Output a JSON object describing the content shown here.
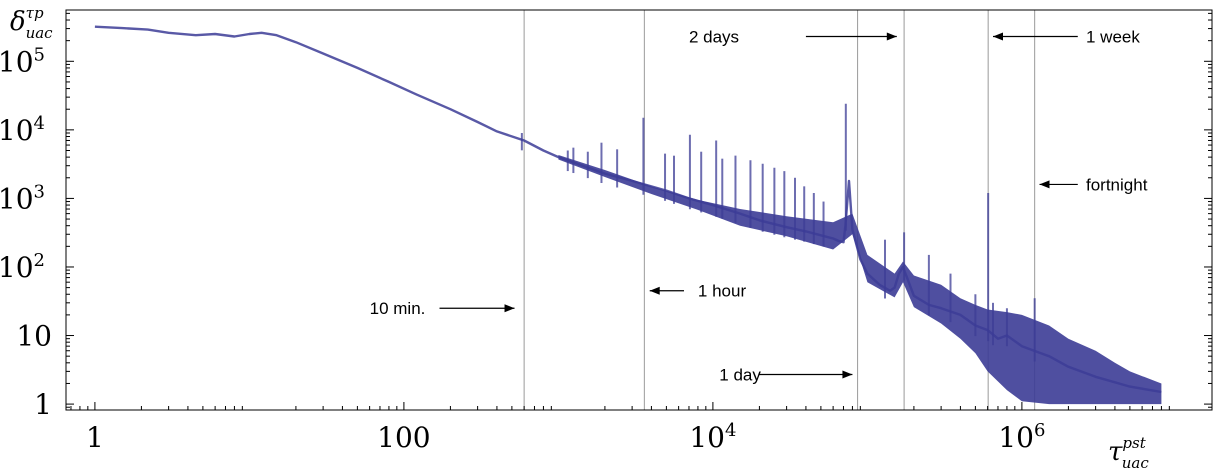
{
  "chart_data": {
    "type": "line",
    "scale": {
      "x": "log",
      "y": "log"
    },
    "xlim": [
      0.65,
      17000000
    ],
    "ylim": [
      0.82,
      560000
    ],
    "ylabel": {
      "main": "δ",
      "sup": "τp",
      "sub": "uac"
    },
    "xlabel": {
      "main": "τ",
      "sup": "pst",
      "sub": "uac"
    },
    "x_ticks": [
      {
        "value": 1,
        "label": "1"
      },
      {
        "value": 100,
        "label": "100"
      },
      {
        "value": 10000,
        "label": "10",
        "sup": "4"
      },
      {
        "value": 1000000,
        "label": "10",
        "sup": "6"
      }
    ],
    "y_ticks": [
      {
        "value": 1,
        "label": "1"
      },
      {
        "value": 10,
        "label": "10"
      },
      {
        "value": 100,
        "label": "10",
        "sup": "2"
      },
      {
        "value": 1000,
        "label": "10",
        "sup": "3"
      },
      {
        "value": 10000,
        "label": "10",
        "sup": "4"
      },
      {
        "value": 100000,
        "label": "10",
        "sup": "5"
      }
    ],
    "series": [
      {
        "color": "#3c3c96",
        "x": [
          1,
          1.5,
          2.2,
          3,
          4.5,
          6,
          8,
          10,
          12,
          15,
          20,
          30,
          50,
          80,
          120,
          200,
          300,
          400,
          600,
          800,
          1000,
          1500,
          2000,
          3000,
          5000,
          7000,
          10000,
          15000,
          20000,
          30000,
          40000,
          50000,
          60000,
          65000,
          70000,
          72000,
          76000,
          80000,
          90000,
          100000,
          120000,
          140000,
          150000,
          160000,
          170000,
          200000,
          250000,
          300000,
          400000,
          500000,
          600000,
          700000,
          800000,
          1000000,
          1500000,
          2000000,
          3000000,
          5000000,
          8000000
        ],
        "y": [
          320000,
          305000,
          290000,
          260000,
          240000,
          250000,
          230000,
          250000,
          260000,
          240000,
          190000,
          130000,
          80000,
          50000,
          33000,
          20000,
          13000,
          9500,
          7000,
          5000,
          4000,
          2900,
          2300,
          1800,
          1300,
          1000,
          800,
          600,
          480,
          380,
          330,
          290,
          260,
          240,
          230,
          400,
          1800,
          350,
          130,
          80,
          55,
          45,
          50,
          80,
          100,
          38,
          28,
          25,
          20,
          14,
          12,
          9,
          10,
          7,
          5,
          3.5,
          2.5,
          1.8,
          1.5
        ],
        "band_lower_x": [
          1000,
          2000,
          4000,
          8000,
          15000,
          30000,
          60000,
          80000,
          100000,
          150000,
          170000,
          200000,
          300000,
          400000,
          500000,
          600000,
          800000,
          1000000,
          1500000,
          2000000,
          3000000,
          4000000,
          5000000,
          8000000
        ],
        "band_lower_y": [
          3700,
          2050,
          1160,
          680,
          400,
          280,
          180,
          300,
          60,
          36,
          60,
          26,
          15,
          9,
          5.5,
          3,
          1.6,
          1.1,
          1,
          1,
          1,
          1,
          1,
          1
        ],
        "band_upper_x": [
          1000,
          2000,
          4000,
          8000,
          15000,
          30000,
          60000,
          80000,
          100000,
          150000,
          170000,
          200000,
          300000,
          400000,
          500000,
          600000,
          800000,
          1000000,
          1500000,
          2000000,
          3000000,
          4000000,
          5000000,
          8000000
        ],
        "band_upper_y": [
          4300,
          2600,
          1500,
          950,
          700,
          550,
          450,
          600,
          150,
          80,
          120,
          75,
          55,
          35,
          28,
          24,
          22,
          20,
          14,
          9,
          6,
          4,
          3,
          2
        ],
        "spikes": [
          {
            "x": 580,
            "y": 9000
          },
          {
            "x": 1150,
            "y": 5000
          },
          {
            "x": 1250,
            "y": 5500
          },
          {
            "x": 1550,
            "y": 4800
          },
          {
            "x": 1900,
            "y": 6500
          },
          {
            "x": 2400,
            "y": 5200
          },
          {
            "x": 3550,
            "y": 15000
          },
          {
            "x": 4900,
            "y": 4500
          },
          {
            "x": 5600,
            "y": 4200
          },
          {
            "x": 7100,
            "y": 8500
          },
          {
            "x": 8400,
            "y": 4800
          },
          {
            "x": 10500,
            "y": 7000
          },
          {
            "x": 11500,
            "y": 3800
          },
          {
            "x": 14000,
            "y": 4200
          },
          {
            "x": 17500,
            "y": 3600
          },
          {
            "x": 21000,
            "y": 3200
          },
          {
            "x": 25000,
            "y": 2800
          },
          {
            "x": 29000,
            "y": 2500
          },
          {
            "x": 34000,
            "y": 2000
          },
          {
            "x": 39000,
            "y": 1500
          },
          {
            "x": 45000,
            "y": 1200
          },
          {
            "x": 52000,
            "y": 900
          },
          {
            "x": 72500,
            "y": 24000
          },
          {
            "x": 130000,
            "y": 250
          },
          {
            "x": 172800,
            "y": 320
          },
          {
            "x": 250000,
            "y": 150
          },
          {
            "x": 345000,
            "y": 80
          },
          {
            "x": 500000,
            "y": 40
          },
          {
            "x": 604800,
            "y": 1200
          },
          {
            "x": 650000,
            "y": 30
          },
          {
            "x": 800000,
            "y": 25
          },
          {
            "x": 1209600,
            "y": 35
          }
        ]
      }
    ],
    "reference_lines": [
      {
        "x": 600
      },
      {
        "x": 3600
      },
      {
        "x": 86400
      },
      {
        "x": 172800
      },
      {
        "x": 604800
      },
      {
        "x": 1209600
      }
    ],
    "annotations": [
      {
        "text": "10 min.",
        "text_x": 60,
        "y": 25,
        "arrow_from": 170,
        "arrow_to": 520
      },
      {
        "text": "1 hour",
        "text_x": 8000,
        "y": 45,
        "arrow_from": 6500,
        "arrow_to": 3900
      },
      {
        "text": "1 day",
        "text_x": 11000,
        "y": 2.7,
        "arrow_from": 20000,
        "arrow_to": 80000
      },
      {
        "text": "2 days",
        "text_x": 7000,
        "y": 230000,
        "arrow_from": 40000,
        "arrow_to": 155000
      },
      {
        "text": "1 week",
        "text_x": 2600000,
        "y": 230000,
        "arrow_from": 2300000,
        "arrow_to": 650000
      },
      {
        "text": "fortnight",
        "text_x": 2600000,
        "y": 1600,
        "arrow_from": 2300000,
        "arrow_to": 1300000
      }
    ]
  }
}
